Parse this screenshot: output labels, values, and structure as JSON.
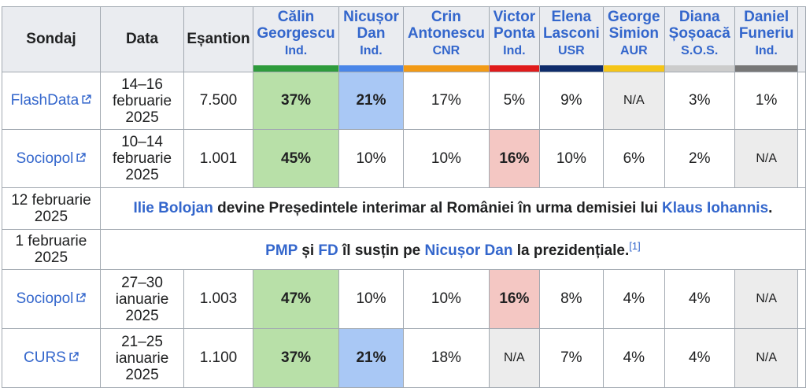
{
  "header": {
    "pollster": "Sondaj",
    "date": "Data",
    "sample": "Eșantion",
    "candidates": [
      {
        "name_line1": "Călin",
        "name_line2": "Georgescu",
        "party": "Ind.",
        "color": "#2e9b3c"
      },
      {
        "name_line1": "Nicușor",
        "name_line2": "Dan",
        "party": "Ind.",
        "color": "#4a86e8"
      },
      {
        "name_line1": "Crin",
        "name_line2": "Antonescu",
        "party": "CNR",
        "color": "#f29a16"
      },
      {
        "name_line1": "Victor",
        "name_line2": "Ponta",
        "party": "Ind.",
        "color": "#e01b1b"
      },
      {
        "name_line1": "Elena",
        "name_line2": "Lasconi",
        "party": "USR",
        "color": "#0f2c6b"
      },
      {
        "name_line1": "George",
        "name_line2": "Simion",
        "party": "AUR",
        "color": "#f5c518"
      },
      {
        "name_line1": "Diana",
        "name_line2": "Șoșoacă",
        "party": "S.O.S.",
        "color": "#cccccc"
      },
      {
        "name_line1": "Daniel",
        "name_line2": "Funeriu",
        "party": "Ind.",
        "color": "#777777"
      }
    ]
  },
  "highlight_colors": {
    "green": "#b8e0a8",
    "blue": "#a9c8f5",
    "red": "#f4c7c3",
    "na": "#ececec"
  },
  "rows": [
    {
      "pollster": "FlashData",
      "date": [
        "14–16",
        "februarie",
        "2025"
      ],
      "sample": "7.500",
      "values": [
        "37%",
        "21%",
        "17%",
        "5%",
        "9%",
        "N/A",
        "3%",
        "1%"
      ]
    },
    {
      "pollster": "Sociopol",
      "date": [
        "10–14",
        "februarie",
        "2025"
      ],
      "sample": "1.001",
      "values": [
        "45%",
        "10%",
        "10%",
        "16%",
        "10%",
        "6%",
        "2%",
        "N/A"
      ]
    },
    {
      "pollster": "Sociopol",
      "date": [
        "27–30",
        "ianuarie",
        "2025"
      ],
      "sample": "1.003",
      "values": [
        "47%",
        "10%",
        "10%",
        "16%",
        "8%",
        "4%",
        "4%",
        "N/A"
      ]
    },
    {
      "pollster": "CURS",
      "date": [
        "21–25",
        "ianuarie",
        "2025"
      ],
      "sample": "1.100",
      "values": [
        "37%",
        "21%",
        "18%",
        "N/A",
        "7%",
        "4%",
        "4%",
        "N/A"
      ]
    }
  ],
  "events": [
    {
      "date": [
        "12 februarie",
        "2025"
      ],
      "link1": "Ilie Bolojan",
      "text1": " devine Președintele interimar al României în urma demisiei lui ",
      "link2": "Klaus Iohannis",
      "text2": "."
    },
    {
      "date": [
        "1 februarie",
        "2025"
      ],
      "link1": "PMP",
      "text1": " și ",
      "link2": "FD",
      "text2": " îl susțin pe ",
      "link3": "Nicușor Dan",
      "text3": " la prezidențiale.",
      "ref": "[1]"
    }
  ]
}
